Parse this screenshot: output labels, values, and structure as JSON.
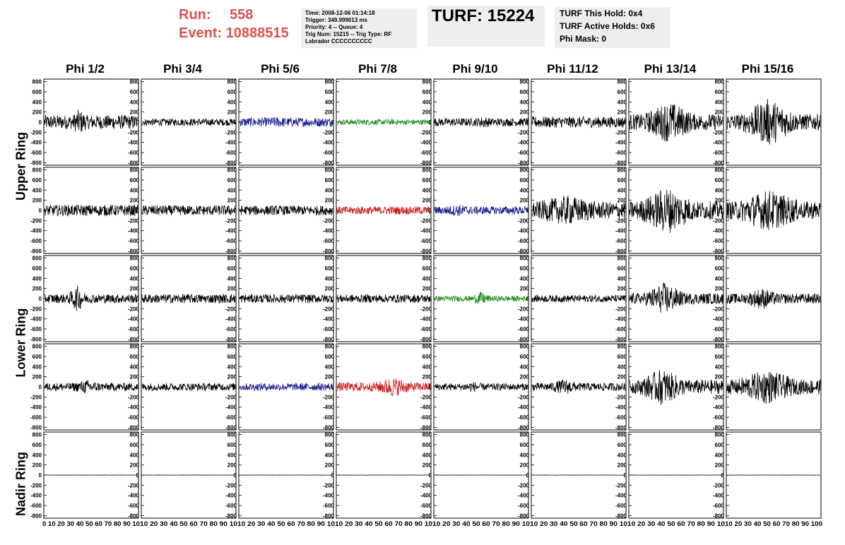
{
  "header": {
    "run_label": "Run:",
    "run_value": "558",
    "event_label": "Event:",
    "event_value": "10888515",
    "info_lines": [
      "Time: 2008-12-06 01:14:18",
      "Trigger: 349.999013 ms",
      "Priority: 4 -- Queue: 4",
      "Trig Num: 15215 -- Trig Type: RF",
      "Labrador CCCCCCCCCC"
    ],
    "turf_title": "TURF: 15224",
    "turf_lines": [
      "TURF This Hold: 0x4",
      "TURF Active Holds: 0x6",
      "Phi Mask: 0"
    ]
  },
  "columns": [
    "Phi 1/2",
    "Phi 3/4",
    "Phi 5/6",
    "Phi 7/8",
    "Phi 9/10",
    "Phi 11/12",
    "Phi 13/14",
    "Phi 15/16"
  ],
  "rings": [
    "Upper Ring",
    "Lower Ring",
    "Nadir Ring"
  ],
  "y_ticks": [
    "800",
    "600",
    "400",
    "200",
    "0",
    "-200",
    "-400",
    "-600",
    "-800"
  ],
  "x_tick_strings": [
    "0 10 20 30 40 50 60 70 80 90 10",
    "10 20 30 40 50 60 70 80 90 10",
    "10 20 30 40 50 60 70 80 90 10",
    "10 20 30 40 50 60 70 80 90 10",
    "10 20 30 40 50 60 70 80 90 10",
    "10 20 30 40 50 60 70 80 90 10",
    "10 20 30 40 50 60 70 80 90 10",
    "10 20 30 40 50 60 70 80 90 100"
  ],
  "colors": {
    "run": "#d9534f",
    "black": "#000000",
    "blue": "#1a1a8c",
    "green": "#1a8c1a",
    "red": "#c81e1e"
  },
  "chart_data": {
    "type": "line",
    "x_range": [
      0,
      100
    ],
    "y_range": [
      -850,
      850
    ],
    "rows": [
      {
        "name": "upper-1",
        "panels": [
          {
            "color": "black",
            "amp": 140,
            "burst": [
              30,
              45,
              260
            ]
          },
          {
            "color": "black",
            "amp": 70,
            "burst": null
          },
          {
            "color": "blue",
            "amp": 90,
            "burst": [
              30,
              50,
              110
            ]
          },
          {
            "color": "green",
            "amp": 55,
            "burst": null
          },
          {
            "color": "black",
            "amp": 80,
            "burst": [
              45,
              60,
              120
            ]
          },
          {
            "color": "black",
            "amp": 110,
            "burst": null
          },
          {
            "color": "black",
            "amp": 160,
            "burst": [
              15,
              70,
              420
            ]
          },
          {
            "color": "black",
            "amp": 160,
            "burst": [
              15,
              75,
              480
            ]
          }
        ]
      },
      {
        "name": "upper-2",
        "panels": [
          {
            "color": "black",
            "amp": 110,
            "burst": null
          },
          {
            "color": "black",
            "amp": 100,
            "burst": null
          },
          {
            "color": "black",
            "amp": 95,
            "burst": null
          },
          {
            "color": "red",
            "amp": 80,
            "burst": null
          },
          {
            "color": "blue",
            "amp": 80,
            "burst": [
              10,
              40,
              120
            ]
          },
          {
            "color": "black",
            "amp": 170,
            "burst": [
              5,
              70,
              300
            ]
          },
          {
            "color": "black",
            "amp": 180,
            "burst": [
              10,
              70,
              480
            ]
          },
          {
            "color": "black",
            "amp": 180,
            "burst": [
              10,
              80,
              420
            ]
          }
        ]
      },
      {
        "name": "lower-1",
        "panels": [
          {
            "color": "black",
            "amp": 90,
            "burst": [
              25,
              45,
              260
            ]
          },
          {
            "color": "black",
            "amp": 90,
            "burst": null
          },
          {
            "color": "black",
            "amp": 85,
            "burst": null
          },
          {
            "color": "black",
            "amp": 80,
            "burst": null
          },
          {
            "color": "green",
            "amp": 55,
            "burst": [
              40,
              60,
              140
            ]
          },
          {
            "color": "black",
            "amp": 70,
            "burst": null
          },
          {
            "color": "black",
            "amp": 110,
            "burst": [
              15,
              60,
              330
            ]
          },
          {
            "color": "black",
            "amp": 100,
            "burst": [
              20,
              55,
              220
            ]
          }
        ]
      },
      {
        "name": "lower-2",
        "panels": [
          {
            "color": "black",
            "amp": 80,
            "burst": [
              30,
              60,
              140
            ]
          },
          {
            "color": "black",
            "amp": 75,
            "burst": null
          },
          {
            "color": "blue",
            "amp": 75,
            "burst": null
          },
          {
            "color": "red",
            "amp": 90,
            "burst": [
              40,
              80,
              200
            ]
          },
          {
            "color": "black",
            "amp": 70,
            "burst": [
              30,
              50,
              110
            ]
          },
          {
            "color": "black",
            "amp": 80,
            "burst": [
              20,
              50,
              160
            ]
          },
          {
            "color": "black",
            "amp": 140,
            "burst": [
              10,
              60,
              370
            ]
          },
          {
            "color": "black",
            "amp": 150,
            "burst": [
              10,
              75,
              350
            ]
          }
        ]
      },
      {
        "name": "nadir",
        "panels": [
          {
            "color": "black",
            "amp": 3,
            "burst": null
          },
          {
            "color": "black",
            "amp": 3,
            "burst": null
          },
          {
            "color": "black",
            "amp": 3,
            "burst": null
          },
          {
            "color": "black",
            "amp": 3,
            "burst": null
          },
          {
            "color": "black",
            "amp": 3,
            "burst": null
          },
          {
            "color": "black",
            "amp": 3,
            "burst": null
          },
          {
            "color": "black",
            "amp": 3,
            "burst": null
          },
          {
            "color": "black",
            "amp": 3,
            "burst": null
          }
        ]
      }
    ]
  }
}
